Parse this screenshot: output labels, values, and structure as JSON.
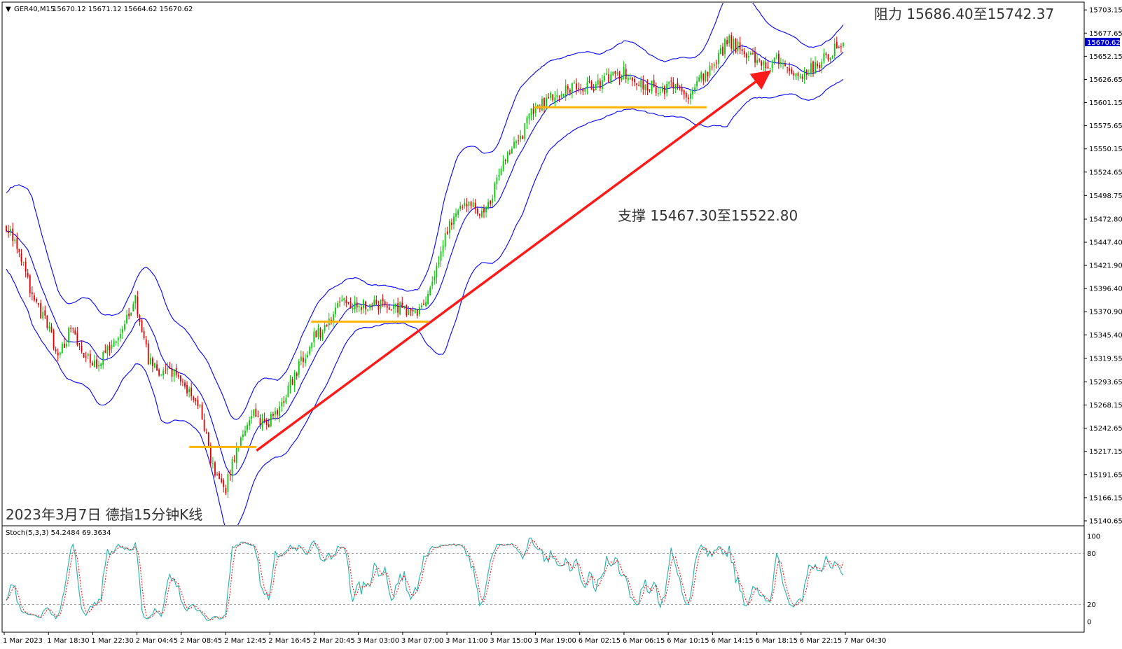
{
  "header": {
    "symbol": "GER40,M15",
    "ohlc": "15670.12 15671.12 15664.62 15670.62"
  },
  "price_tag": "15670.62",
  "annotations": {
    "resistance": "阻力 15686.40至15742.37",
    "support": "支撑 15467.30至15522.80",
    "caption": "2023年3月7日 德指15分钟K线"
  },
  "oscillator": {
    "label": "Stoch(5,3,3) 54.2484 69.3634",
    "levels": [
      "100",
      "80",
      "20",
      "0"
    ]
  },
  "colors": {
    "bull": "#00cc00",
    "bear": "#e00000",
    "bands": "#0000ff",
    "trend_arrow": "#ff1a1a",
    "support_lines": "#ffb400",
    "stoch_main": "#20b2aa",
    "stoch_signal": "#ff0000",
    "price_tag_bg": "#0000cc"
  },
  "chart_data": {
    "type": "candlestick",
    "price_axis": [
      "15703.15",
      "15677.65",
      "15652.15",
      "15626.65",
      "15601.15",
      "15575.65",
      "15550.15",
      "15524.65",
      "15498.75",
      "15472.80",
      "15447.40",
      "15421.90",
      "15396.40",
      "15370.90",
      "15345.40",
      "15319.55",
      "15293.65",
      "15268.15",
      "15242.65",
      "15217.15",
      "15191.65",
      "15166.15",
      "15140.65"
    ],
    "ylim": [
      15136,
      15711
    ],
    "time_axis": [
      "1 Mar 2023",
      "1 Mar 18:30",
      "1 Mar 22:30",
      "2 Mar 04:45",
      "2 Mar 08:45",
      "2 Mar 12:45",
      "2 Mar 16:45",
      "2 Mar 20:45",
      "3 Mar 03:00",
      "3 Mar 07:00",
      "3 Mar 11:00",
      "3 Mar 15:00",
      "3 Mar 19:00",
      "6 Mar 02:15",
      "6 Mar 06:15",
      "6 Mar 10:15",
      "6 Mar 14:15",
      "6 Mar 18:15",
      "6 Mar 22:15",
      "7 Mar 04:30"
    ],
    "close_path": [
      15465,
      15440,
      15390,
      15360,
      15325,
      15350,
      15325,
      15310,
      15330,
      15355,
      15385,
      15320,
      15300,
      15305,
      15285,
      15265,
      15200,
      15175,
      15225,
      15260,
      15245,
      15260,
      15290,
      15320,
      15345,
      15355,
      15385,
      15375,
      15380,
      15380,
      15378,
      15374,
      15370,
      15400,
      15455,
      15480,
      15490,
      15475,
      15510,
      15545,
      15565,
      15595,
      15605,
      15610,
      15618,
      15616,
      15620,
      15630,
      15634,
      15624,
      15620,
      15615,
      15624,
      15610,
      15628,
      15640,
      15670,
      15660,
      15650,
      15640,
      15648,
      15638,
      15632,
      15644,
      15655,
      15668
    ],
    "bands_half_width": [
      42,
      60,
      70,
      55,
      40,
      42,
      48,
      52,
      48,
      38,
      45,
      60,
      72,
      55,
      50,
      45,
      55,
      70,
      58,
      52,
      48,
      42,
      46,
      52,
      54,
      50,
      38,
      30,
      24,
      22,
      20,
      18,
      22,
      48,
      85,
      88,
      72,
      60,
      62,
      70,
      72,
      60,
      50,
      45,
      42,
      40,
      36,
      36,
      38,
      36,
      32,
      30,
      32,
      34,
      40,
      55,
      75,
      70,
      52,
      42,
      36,
      32,
      30,
      28,
      26,
      30
    ],
    "stochastic": {
      "levels": [
        100,
        80,
        20,
        0
      ],
      "main_last": 54.2484,
      "signal_last": 69.3634
    }
  }
}
